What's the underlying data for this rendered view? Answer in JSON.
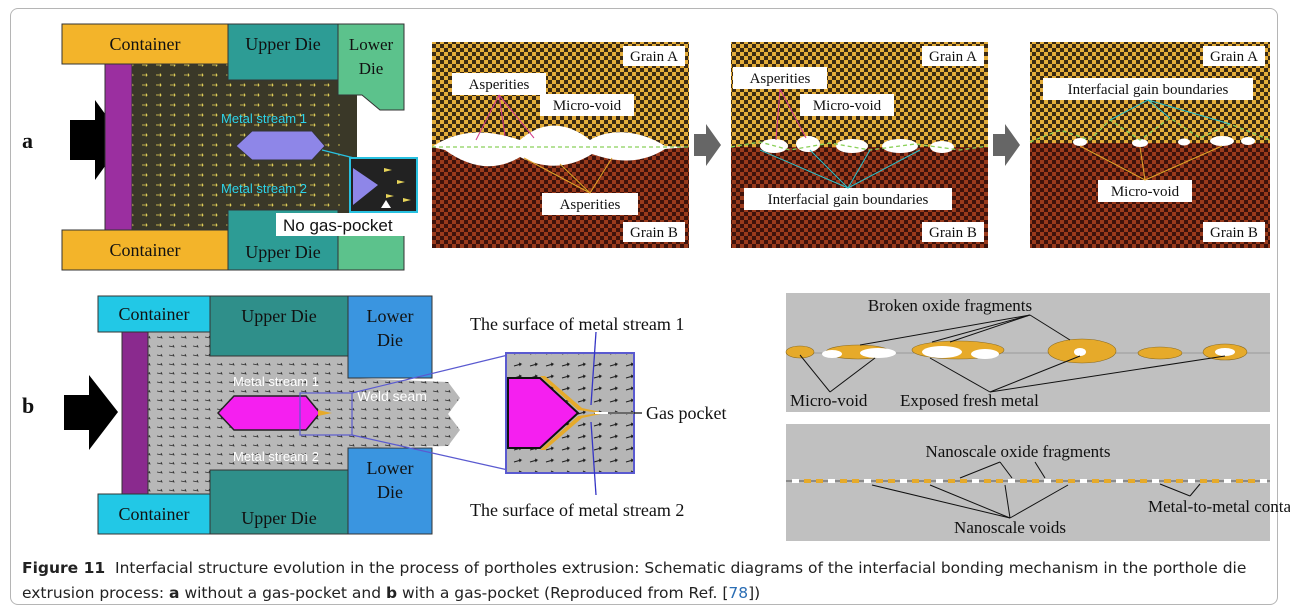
{
  "panel_a": {
    "label": "a",
    "die": {
      "container_top": "Container",
      "container_bottom": "Container",
      "upper_die_top": "Upper Die",
      "upper_die_bottom": "Upper Die",
      "lower_die_line1": "Lower",
      "lower_die_line2": "Die",
      "metal_stream_1": "Metal stream 1",
      "metal_stream_2": "Metal stream 2",
      "no_gas_pocket": "No gas-pocket"
    },
    "micro_1": {
      "grain_a": "Grain A",
      "grain_b": "Grain B",
      "asperities_top": "Asperities",
      "micro_void": "Micro-void",
      "asperities_bottom": "Asperities"
    },
    "micro_2": {
      "grain_a": "Grain A",
      "grain_b": "Grain B",
      "asperities": "Asperities",
      "micro_void": "Micro-void",
      "interfacial": "Interfacial gain boundaries"
    },
    "micro_3": {
      "grain_a": "Grain A",
      "grain_b": "Grain B",
      "interfacial": "Interfacial gain boundaries",
      "micro_void": "Micro-void"
    }
  },
  "panel_b": {
    "label": "b",
    "die": {
      "container_top": "Container",
      "container_bottom": "Container",
      "upper_die_top": "Upper Die",
      "upper_die_bottom": "Upper Die",
      "lower_die_top_1": "Lower",
      "lower_die_top_2": "Die",
      "lower_die_bottom_1": "Lower",
      "lower_die_bottom_2": "Die",
      "metal_stream_1": "Metal stream 1",
      "metal_stream_2": "Metal stream 2",
      "weld_seam": "Weld seam"
    },
    "zoom": {
      "surface_1": "The surface of metal stream 1",
      "surface_2": "The surface of metal stream 2",
      "gas_pocket": "Gas pocket"
    },
    "oxide_top": {
      "broken": "Broken oxide fragments",
      "micro_void": "Micro-void",
      "exposed": "Exposed fresh metal"
    },
    "oxide_bottom": {
      "nano_oxide": "Nanoscale oxide fragments",
      "nano_voids": "Nanoscale voids",
      "contact": "Metal-to-metal contact"
    }
  },
  "caption": {
    "figure_label": "Figure 11",
    "text_1": "Interfacial structure evolution in the process of portholes extrusion: Schematic diagrams of the interfacial bonding mechanism in the porthole die extrusion process: ",
    "a_label": "a",
    "text_2": " without a gas-pocket and ",
    "b_label": "b",
    "text_3": " with a gas-pocket (Reproduced from Ref. [",
    "ref": "78",
    "text_4": "])"
  },
  "colors": {
    "container_a": "#f3b42a",
    "upper_die_a": "#2d9c95",
    "lower_die_a": "#5cc28c",
    "ram_a": "#9b2fa0",
    "billet_a": "#3d3a2c",
    "mandrel": "#8e86e8",
    "container_b": "#22c8e6",
    "upper_die_b": "#2f8f8a",
    "lower_die_b": "#3a95e0",
    "ram_b": "#8a2a8e",
    "mandrel_b": "#f51ff0",
    "grain_a": "#d8a336",
    "grain_b": "#5a1e12",
    "oxide": "#e6aa2a",
    "oxide_bg": "#c0c0c0"
  }
}
